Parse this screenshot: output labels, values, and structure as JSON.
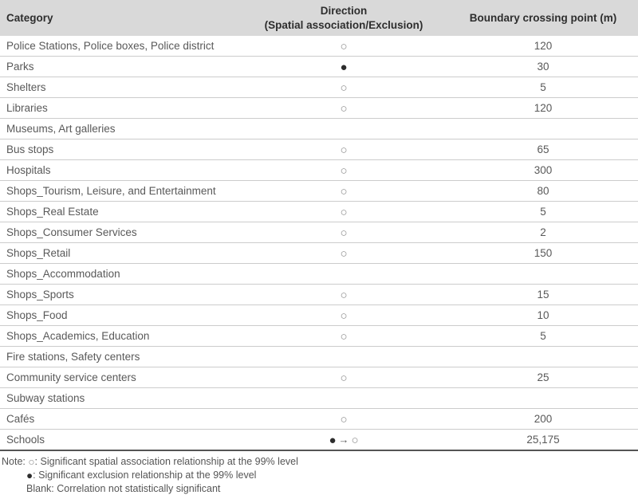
{
  "table": {
    "columns": [
      {
        "label": "Category"
      },
      {
        "label": "Direction",
        "sublabel": "(Spatial association/Exclusion)"
      },
      {
        "label": "Boundary crossing point (m)"
      }
    ],
    "rows": [
      {
        "category": "Police Stations, Police boxes, Police district",
        "direction": "○",
        "boundary": "120"
      },
      {
        "category": "Parks",
        "direction": "●",
        "boundary": "30"
      },
      {
        "category": "Shelters",
        "direction": "○",
        "boundary": "5"
      },
      {
        "category": "Libraries",
        "direction": "○",
        "boundary": "120"
      },
      {
        "category": "Museums, Art galleries",
        "direction": "",
        "boundary": ""
      },
      {
        "category": "Bus stops",
        "direction": "○",
        "boundary": "65"
      },
      {
        "category": "Hospitals",
        "direction": "○",
        "boundary": "300"
      },
      {
        "category": "Shops_Tourism, Leisure, and Entertainment",
        "direction": "○",
        "boundary": "80"
      },
      {
        "category": "Shops_Real Estate",
        "direction": "○",
        "boundary": "5"
      },
      {
        "category": "Shops_Consumer Services",
        "direction": "○",
        "boundary": "2"
      },
      {
        "category": "Shops_Retail",
        "direction": "○",
        "boundary": "150"
      },
      {
        "category": "Shops_Accommodation",
        "direction": "",
        "boundary": ""
      },
      {
        "category": "Shops_Sports",
        "direction": "○",
        "boundary": "15"
      },
      {
        "category": "Shops_Food",
        "direction": "○",
        "boundary": "10"
      },
      {
        "category": "Shops_Academics, Education",
        "direction": "○",
        "boundary": "5"
      },
      {
        "category": "Fire stations, Safety centers",
        "direction": "",
        "boundary": ""
      },
      {
        "category": "Community service centers",
        "direction": "○",
        "boundary": "25"
      },
      {
        "category": "Subway stations",
        "direction": "",
        "boundary": ""
      },
      {
        "category": "Cafés",
        "direction": "○",
        "boundary": "200"
      },
      {
        "category": "Schools",
        "direction": "●→○",
        "boundary": "25,175"
      }
    ]
  },
  "notes": {
    "label": "Note:",
    "lines": [
      "○: Significant spatial association relationship at the 99% level",
      "●: Significant exclusion relationship at the 99% level",
      "Blank: Correlation not statistically significant"
    ]
  },
  "colors": {
    "header_background": "#d9d9d9",
    "header_text": "#2e2e2e",
    "body_text": "#595959",
    "row_divider": "#cccccc",
    "table_bottom_border": "#555555",
    "open_circle": "#8c8c8c",
    "filled_circle": "#2d2d2d"
  },
  "symbols": {
    "open_circle": "○",
    "filled_circle": "●",
    "arrow_right": "→"
  }
}
